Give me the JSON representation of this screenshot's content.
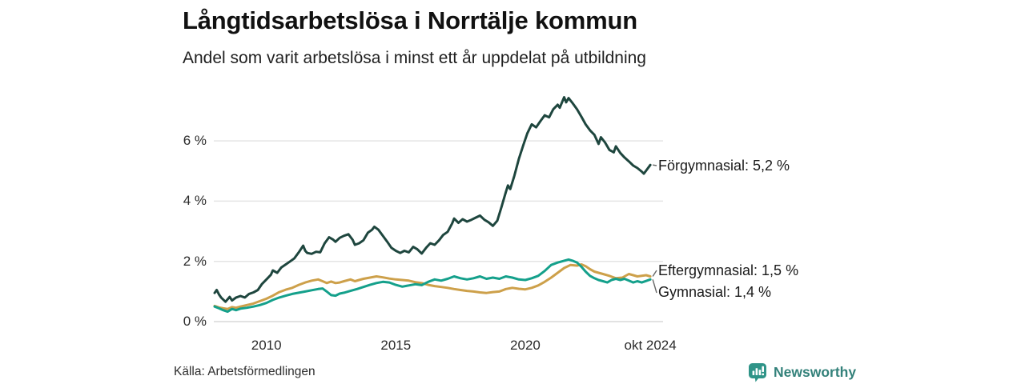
{
  "header": {
    "title": "Långtidsarbetslösa i Norrtälje kommun",
    "subtitle": "Andel som varit arbetslösa i minst ett år uppdelat på utbildning"
  },
  "footer": {
    "source": "Källa: Arbetsförmedlingen",
    "branding": {
      "name": "Newsworthy",
      "icon": "newsworthy-chart-bubble-icon",
      "icon_color": "#2f9488",
      "text_color": "#33817a"
    }
  },
  "colors": {
    "background": "#ffffff",
    "gridline": "#e4e4e4",
    "zeroline": "#d8d8d8",
    "connector": "#666666",
    "forgymnasial": "#1e463e",
    "gymnasial": "#14a08b",
    "eftergymnasial": "#cda04a"
  },
  "chart_data": {
    "type": "line",
    "title": "Långtidsarbetslösa i Norrtälje kommun",
    "subtitle": "Andel som varit arbetslösa i minst ett år uppdelat på utbildning",
    "grid": true,
    "legend_position": "right-annotations",
    "x_range": [
      2008,
      2024.83
    ],
    "y_range": [
      0,
      7.6
    ],
    "y_axis": {
      "tick_values": [
        0,
        2,
        4,
        6
      ],
      "tick_labels": [
        "0 %",
        "2 %",
        "4 %",
        "6 %"
      ]
    },
    "x_axis": {
      "ticks": [
        {
          "label": "2010",
          "year": 2010
        },
        {
          "label": "2015",
          "year": 2015
        },
        {
          "label": "2020",
          "year": 2020
        },
        {
          "label": "okt 2024",
          "year": 2024.83
        }
      ]
    },
    "series": [
      {
        "name": "Förgymnasial",
        "label": "Förgymnasial: 5,2 %",
        "last_value": "5,2 %",
        "color_key": "forgymnasial",
        "points": [
          [
            2008.0,
            0.95
          ],
          [
            2008.08,
            1.05
          ],
          [
            2008.17,
            0.9
          ],
          [
            2008.25,
            0.8
          ],
          [
            2008.42,
            0.66
          ],
          [
            2008.58,
            0.82
          ],
          [
            2008.67,
            0.7
          ],
          [
            2008.83,
            0.8
          ],
          [
            2009.0,
            0.85
          ],
          [
            2009.17,
            0.8
          ],
          [
            2009.33,
            0.92
          ],
          [
            2009.5,
            0.97
          ],
          [
            2009.67,
            1.05
          ],
          [
            2009.83,
            1.25
          ],
          [
            2010.0,
            1.4
          ],
          [
            2010.17,
            1.55
          ],
          [
            2010.25,
            1.7
          ],
          [
            2010.42,
            1.62
          ],
          [
            2010.58,
            1.8
          ],
          [
            2010.75,
            1.9
          ],
          [
            2010.92,
            2.0
          ],
          [
            2011.08,
            2.1
          ],
          [
            2011.25,
            2.3
          ],
          [
            2011.42,
            2.52
          ],
          [
            2011.5,
            2.35
          ],
          [
            2011.58,
            2.28
          ],
          [
            2011.75,
            2.25
          ],
          [
            2011.92,
            2.32
          ],
          [
            2012.08,
            2.3
          ],
          [
            2012.25,
            2.6
          ],
          [
            2012.42,
            2.8
          ],
          [
            2012.58,
            2.72
          ],
          [
            2012.67,
            2.65
          ],
          [
            2012.83,
            2.78
          ],
          [
            2013.0,
            2.85
          ],
          [
            2013.17,
            2.9
          ],
          [
            2013.33,
            2.72
          ],
          [
            2013.42,
            2.55
          ],
          [
            2013.58,
            2.6
          ],
          [
            2013.75,
            2.7
          ],
          [
            2013.92,
            2.95
          ],
          [
            2014.08,
            3.05
          ],
          [
            2014.17,
            3.15
          ],
          [
            2014.33,
            3.05
          ],
          [
            2014.5,
            2.85
          ],
          [
            2014.67,
            2.65
          ],
          [
            2014.83,
            2.45
          ],
          [
            2015.0,
            2.35
          ],
          [
            2015.17,
            2.28
          ],
          [
            2015.33,
            2.35
          ],
          [
            2015.5,
            2.3
          ],
          [
            2015.67,
            2.48
          ],
          [
            2015.83,
            2.4
          ],
          [
            2016.0,
            2.26
          ],
          [
            2016.17,
            2.45
          ],
          [
            2016.33,
            2.6
          ],
          [
            2016.5,
            2.55
          ],
          [
            2016.67,
            2.7
          ],
          [
            2016.83,
            2.88
          ],
          [
            2017.0,
            2.98
          ],
          [
            2017.17,
            3.25
          ],
          [
            2017.25,
            3.42
          ],
          [
            2017.42,
            3.28
          ],
          [
            2017.58,
            3.4
          ],
          [
            2017.75,
            3.32
          ],
          [
            2017.92,
            3.38
          ],
          [
            2018.08,
            3.45
          ],
          [
            2018.25,
            3.52
          ],
          [
            2018.42,
            3.38
          ],
          [
            2018.58,
            3.3
          ],
          [
            2018.75,
            3.18
          ],
          [
            2018.92,
            3.35
          ],
          [
            2019.08,
            3.8
          ],
          [
            2019.25,
            4.3
          ],
          [
            2019.33,
            4.52
          ],
          [
            2019.42,
            4.4
          ],
          [
            2019.58,
            4.85
          ],
          [
            2019.75,
            5.4
          ],
          [
            2019.92,
            5.85
          ],
          [
            2020.08,
            6.25
          ],
          [
            2020.25,
            6.55
          ],
          [
            2020.42,
            6.45
          ],
          [
            2020.58,
            6.65
          ],
          [
            2020.75,
            6.85
          ],
          [
            2020.92,
            6.78
          ],
          [
            2021.08,
            7.05
          ],
          [
            2021.25,
            7.2
          ],
          [
            2021.33,
            7.1
          ],
          [
            2021.5,
            7.45
          ],
          [
            2021.58,
            7.28
          ],
          [
            2021.67,
            7.42
          ],
          [
            2021.83,
            7.25
          ],
          [
            2022.0,
            7.05
          ],
          [
            2022.17,
            6.8
          ],
          [
            2022.33,
            6.55
          ],
          [
            2022.5,
            6.35
          ],
          [
            2022.67,
            6.2
          ],
          [
            2022.83,
            5.9
          ],
          [
            2022.92,
            6.12
          ],
          [
            2023.08,
            5.95
          ],
          [
            2023.25,
            5.7
          ],
          [
            2023.42,
            5.62
          ],
          [
            2023.5,
            5.82
          ],
          [
            2023.67,
            5.6
          ],
          [
            2023.83,
            5.45
          ],
          [
            2024.0,
            5.32
          ],
          [
            2024.17,
            5.18
          ],
          [
            2024.33,
            5.1
          ],
          [
            2024.5,
            4.98
          ],
          [
            2024.58,
            4.91
          ],
          [
            2024.7,
            5.05
          ],
          [
            2024.83,
            5.2
          ]
        ]
      },
      {
        "name": "Eftergymnasial",
        "label": "Eftergymnasial: 1,5 %",
        "last_value": "1,5 %",
        "color_key": "eftergymnasial",
        "points": [
          [
            2008.0,
            0.52
          ],
          [
            2008.17,
            0.47
          ],
          [
            2008.33,
            0.44
          ],
          [
            2008.5,
            0.42
          ],
          [
            2008.67,
            0.48
          ],
          [
            2008.83,
            0.46
          ],
          [
            2009.0,
            0.5
          ],
          [
            2009.25,
            0.55
          ],
          [
            2009.5,
            0.6
          ],
          [
            2009.75,
            0.68
          ],
          [
            2010.0,
            0.76
          ],
          [
            2010.25,
            0.86
          ],
          [
            2010.5,
            0.98
          ],
          [
            2010.75,
            1.06
          ],
          [
            2011.0,
            1.12
          ],
          [
            2011.25,
            1.22
          ],
          [
            2011.5,
            1.3
          ],
          [
            2011.75,
            1.36
          ],
          [
            2012.0,
            1.4
          ],
          [
            2012.17,
            1.34
          ],
          [
            2012.33,
            1.28
          ],
          [
            2012.5,
            1.33
          ],
          [
            2012.67,
            1.28
          ],
          [
            2012.83,
            1.3
          ],
          [
            2013.0,
            1.34
          ],
          [
            2013.25,
            1.4
          ],
          [
            2013.42,
            1.34
          ],
          [
            2013.58,
            1.38
          ],
          [
            2013.75,
            1.42
          ],
          [
            2014.0,
            1.46
          ],
          [
            2014.25,
            1.5
          ],
          [
            2014.5,
            1.47
          ],
          [
            2014.75,
            1.43
          ],
          [
            2015.0,
            1.4
          ],
          [
            2015.25,
            1.38
          ],
          [
            2015.5,
            1.36
          ],
          [
            2015.75,
            1.31
          ],
          [
            2016.0,
            1.28
          ],
          [
            2016.25,
            1.22
          ],
          [
            2016.5,
            1.18
          ],
          [
            2016.75,
            1.15
          ],
          [
            2017.0,
            1.12
          ],
          [
            2017.25,
            1.08
          ],
          [
            2017.5,
            1.05
          ],
          [
            2017.75,
            1.02
          ],
          [
            2018.0,
            1.0
          ],
          [
            2018.25,
            0.97
          ],
          [
            2018.5,
            0.95
          ],
          [
            2018.75,
            0.98
          ],
          [
            2019.0,
            1.0
          ],
          [
            2019.25,
            1.08
          ],
          [
            2019.5,
            1.12
          ],
          [
            2019.75,
            1.09
          ],
          [
            2020.0,
            1.07
          ],
          [
            2020.25,
            1.12
          ],
          [
            2020.5,
            1.2
          ],
          [
            2020.75,
            1.32
          ],
          [
            2021.0,
            1.46
          ],
          [
            2021.25,
            1.62
          ],
          [
            2021.5,
            1.78
          ],
          [
            2021.75,
            1.88
          ],
          [
            2022.0,
            1.86
          ],
          [
            2022.17,
            1.9
          ],
          [
            2022.33,
            1.84
          ],
          [
            2022.5,
            1.74
          ],
          [
            2022.67,
            1.66
          ],
          [
            2022.83,
            1.62
          ],
          [
            2023.0,
            1.58
          ],
          [
            2023.25,
            1.52
          ],
          [
            2023.5,
            1.44
          ],
          [
            2023.75,
            1.46
          ],
          [
            2024.0,
            1.58
          ],
          [
            2024.17,
            1.54
          ],
          [
            2024.33,
            1.5
          ],
          [
            2024.5,
            1.52
          ],
          [
            2024.67,
            1.54
          ],
          [
            2024.83,
            1.5
          ]
        ]
      },
      {
        "name": "Gymnasial",
        "label": "Gymnasial: 1,4 %",
        "last_value": "1,4 %",
        "color_key": "gymnasial",
        "points": [
          [
            2008.0,
            0.5
          ],
          [
            2008.17,
            0.44
          ],
          [
            2008.33,
            0.38
          ],
          [
            2008.5,
            0.33
          ],
          [
            2008.67,
            0.42
          ],
          [
            2008.83,
            0.38
          ],
          [
            2009.0,
            0.43
          ],
          [
            2009.25,
            0.46
          ],
          [
            2009.5,
            0.5
          ],
          [
            2009.75,
            0.55
          ],
          [
            2010.0,
            0.62
          ],
          [
            2010.25,
            0.72
          ],
          [
            2010.5,
            0.8
          ],
          [
            2010.75,
            0.86
          ],
          [
            2011.0,
            0.92
          ],
          [
            2011.25,
            0.96
          ],
          [
            2011.5,
            1.0
          ],
          [
            2011.75,
            1.04
          ],
          [
            2012.0,
            1.08
          ],
          [
            2012.17,
            1.1
          ],
          [
            2012.33,
            1.0
          ],
          [
            2012.5,
            0.88
          ],
          [
            2012.67,
            0.86
          ],
          [
            2012.83,
            0.93
          ],
          [
            2013.0,
            0.96
          ],
          [
            2013.25,
            1.02
          ],
          [
            2013.5,
            1.08
          ],
          [
            2013.75,
            1.15
          ],
          [
            2014.0,
            1.22
          ],
          [
            2014.25,
            1.28
          ],
          [
            2014.5,
            1.32
          ],
          [
            2014.75,
            1.3
          ],
          [
            2015.0,
            1.22
          ],
          [
            2015.25,
            1.16
          ],
          [
            2015.5,
            1.2
          ],
          [
            2015.75,
            1.24
          ],
          [
            2016.0,
            1.21
          ],
          [
            2016.25,
            1.32
          ],
          [
            2016.5,
            1.4
          ],
          [
            2016.75,
            1.36
          ],
          [
            2017.0,
            1.42
          ],
          [
            2017.25,
            1.5
          ],
          [
            2017.5,
            1.44
          ],
          [
            2017.75,
            1.4
          ],
          [
            2018.0,
            1.44
          ],
          [
            2018.25,
            1.5
          ],
          [
            2018.5,
            1.42
          ],
          [
            2018.75,
            1.46
          ],
          [
            2019.0,
            1.42
          ],
          [
            2019.25,
            1.5
          ],
          [
            2019.5,
            1.46
          ],
          [
            2019.75,
            1.4
          ],
          [
            2020.0,
            1.38
          ],
          [
            2020.25,
            1.44
          ],
          [
            2020.5,
            1.52
          ],
          [
            2020.75,
            1.68
          ],
          [
            2021.0,
            1.88
          ],
          [
            2021.25,
            1.96
          ],
          [
            2021.5,
            2.02
          ],
          [
            2021.67,
            2.06
          ],
          [
            2021.83,
            2.02
          ],
          [
            2022.0,
            1.96
          ],
          [
            2022.17,
            1.82
          ],
          [
            2022.33,
            1.66
          ],
          [
            2022.5,
            1.52
          ],
          [
            2022.67,
            1.44
          ],
          [
            2022.83,
            1.38
          ],
          [
            2023.0,
            1.34
          ],
          [
            2023.17,
            1.3
          ],
          [
            2023.33,
            1.38
          ],
          [
            2023.5,
            1.42
          ],
          [
            2023.67,
            1.38
          ],
          [
            2023.83,
            1.42
          ],
          [
            2024.0,
            1.36
          ],
          [
            2024.17,
            1.3
          ],
          [
            2024.33,
            1.34
          ],
          [
            2024.5,
            1.3
          ],
          [
            2024.67,
            1.35
          ],
          [
            2024.83,
            1.4
          ]
        ]
      }
    ]
  }
}
